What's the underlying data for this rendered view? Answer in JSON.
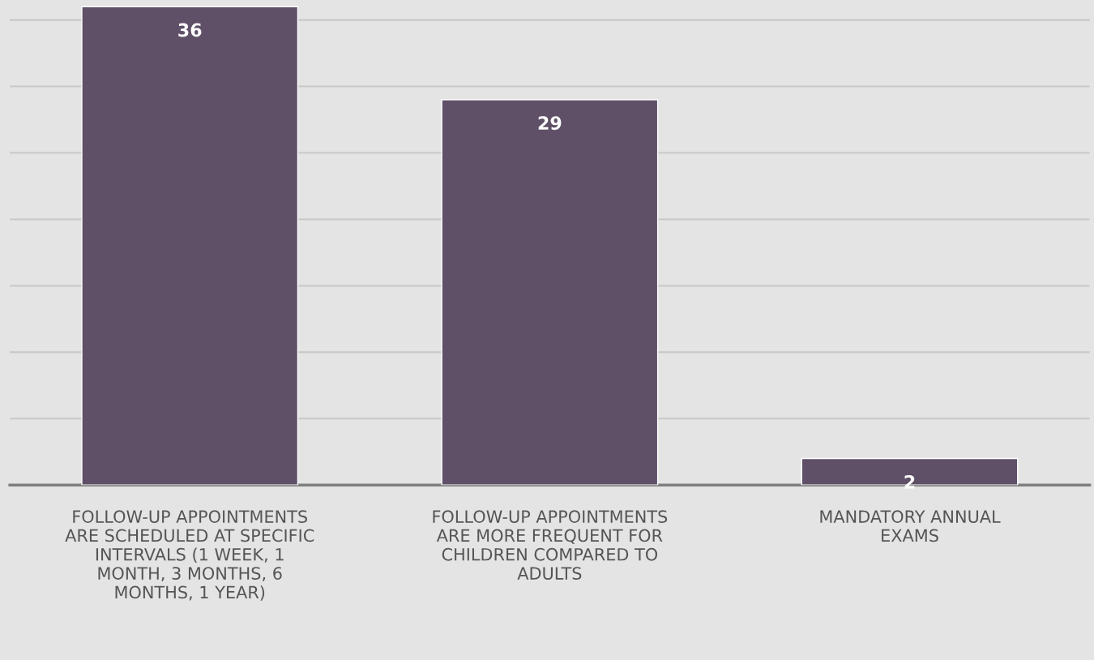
{
  "chart_data": {
    "type": "bar",
    "categories": [
      "FOLLOW-UP APPOINTMENTS\nARE SCHEDULED AT SPECIFIC\nINTERVALS (1 WEEK, 1\nMONTH, 3 MONTHS, 6\nMONTHS, 1 YEAR)",
      "FOLLOW-UP APPOINTMENTS\nARE MORE FREQUENT FOR\nCHILDREN COMPARED TO\nADULTS",
      "MANDATORY ANNUAL\nEXAMS"
    ],
    "values": [
      36,
      29,
      2
    ],
    "color": "#5f5068",
    "relative": false,
    "ylim": [
      0,
      36.5
    ],
    "yticks": [
      {
        "value": 0,
        "label": null
      },
      {
        "value": 5,
        "label": null
      },
      {
        "value": 10,
        "label": null
      },
      {
        "value": 15,
        "label": null
      },
      {
        "value": 20,
        "label": null
      },
      {
        "value": 25,
        "label": null
      },
      {
        "value": 30,
        "label": null
      },
      {
        "value": 35,
        "label": null
      }
    ],
    "grid": "y",
    "data_labels": true,
    "legend": false
  }
}
